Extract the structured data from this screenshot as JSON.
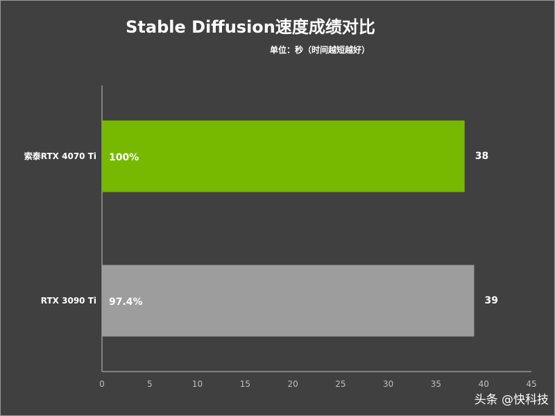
{
  "title": "Stable Diffusion速度成绩对比",
  "subtitle": "单位：秒（时间越短越好）",
  "watermark": "头条 @快科技",
  "colors": {
    "background": "#404040",
    "series_green": "#76b900",
    "series_gray": "#9d9d9d",
    "text": "#ffffff",
    "axis": "#bfbfbf"
  },
  "chart_data": {
    "type": "bar",
    "orientation": "horizontal",
    "categories": [
      "索泰RTX 4070 Ti",
      "RTX 3090 Ti"
    ],
    "values": [
      38,
      39
    ],
    "bar_labels": [
      "100%",
      "97.4%"
    ],
    "value_labels": [
      "38",
      "39"
    ],
    "bar_colors": [
      "#76b900",
      "#9d9d9d"
    ],
    "xlim": [
      0,
      45
    ],
    "xticks": [
      0,
      5,
      10,
      15,
      20,
      25,
      30,
      35,
      40,
      45
    ],
    "grid": false,
    "legend": "none"
  }
}
